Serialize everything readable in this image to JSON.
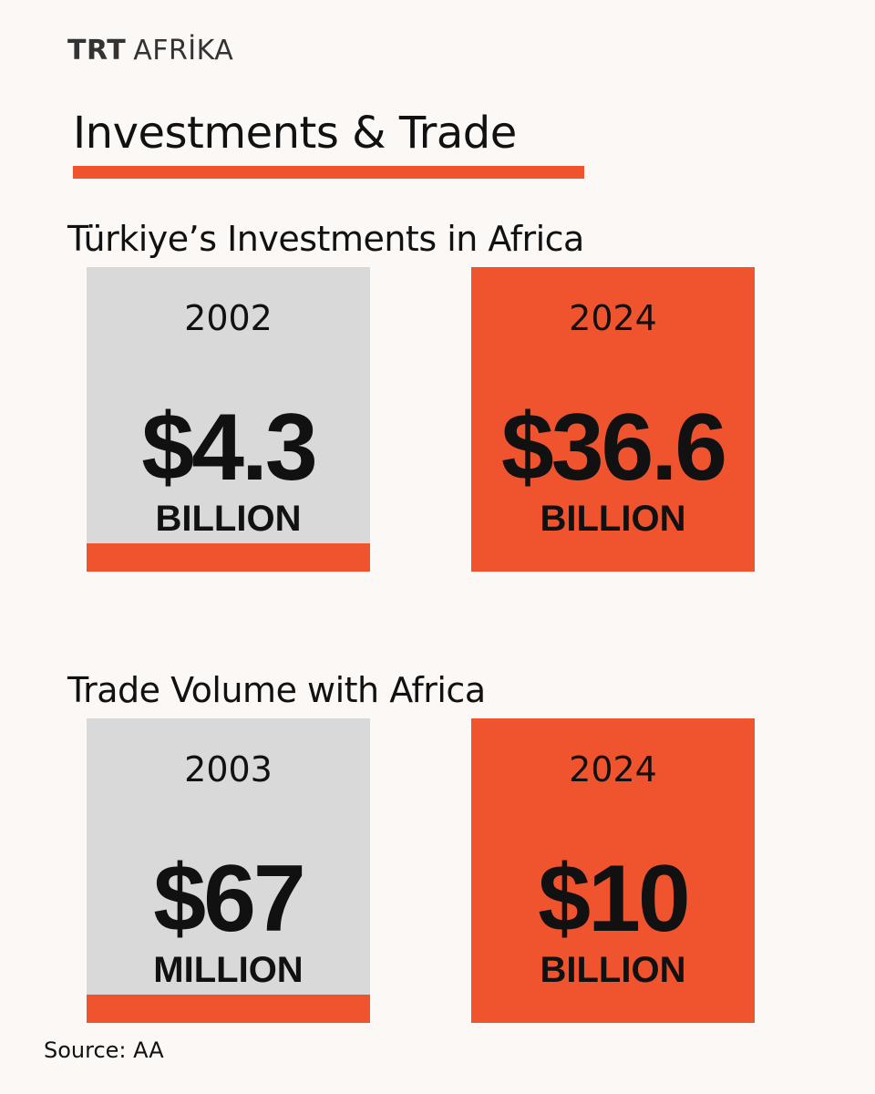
{
  "colors": {
    "accent": "#f0542f",
    "grey_card": "#d9d9d9",
    "background": "#fbf8f5"
  },
  "logo": {
    "brand": "TRT",
    "region": "AFRİKA"
  },
  "title": "Investments & Trade",
  "investments": {
    "heading": "Türkiye’s  Investments in Africa",
    "cards": [
      {
        "year": "2002",
        "amount": "$4.3",
        "unit": "BILLION"
      },
      {
        "year": "2024",
        "amount": "$36.6",
        "unit": "BILLION"
      }
    ]
  },
  "trade": {
    "heading": "Trade Volume with Africa",
    "cards": [
      {
        "year": "2003",
        "amount": "$67",
        "unit": "MILLION"
      },
      {
        "year": "2024",
        "amount": "$10",
        "unit": "BILLION"
      }
    ]
  },
  "source": "Source: AA"
}
